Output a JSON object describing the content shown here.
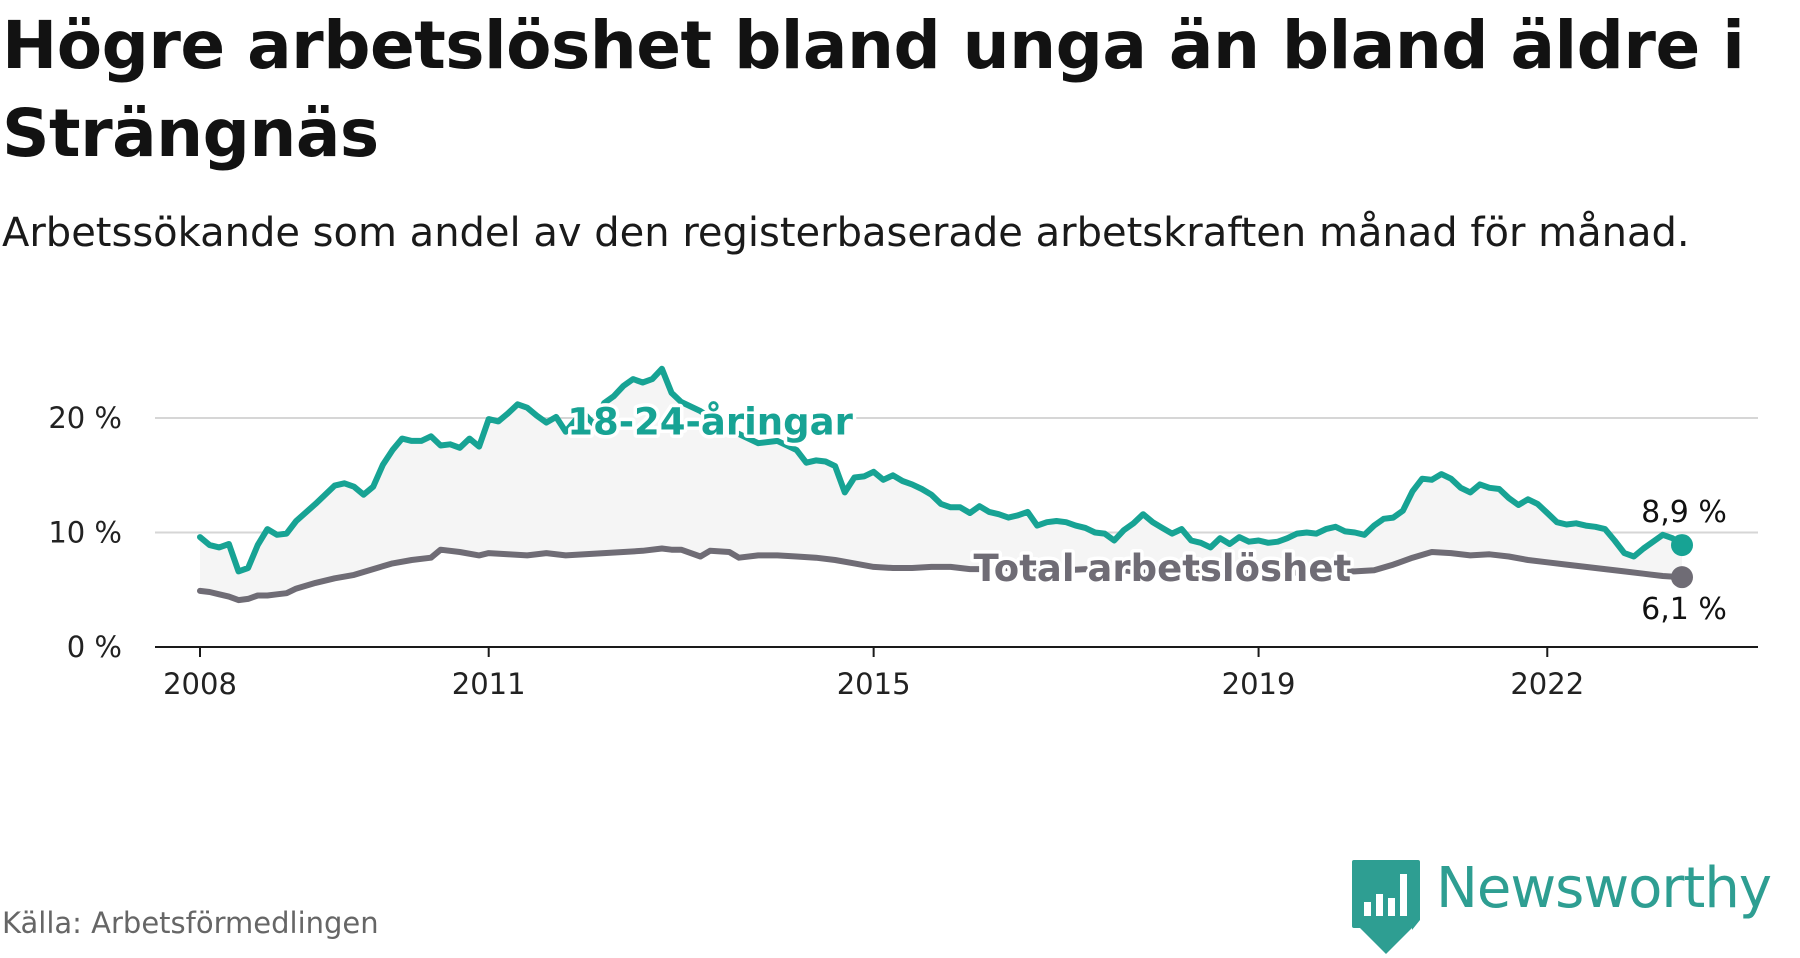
{
  "title": "Högre arbetslöshet bland unga än bland äldre i Strängnäs",
  "subtitle": "Arbetssökande som andel av den registerbaserade arbetskraften månad för månad.",
  "source": "Källa: Arbetsförmedlingen",
  "brand": {
    "name": "Newsworthy",
    "color": "#2e9e92"
  },
  "chart_data": {
    "type": "line",
    "title": "Högre arbetslöshet bland unga än bland äldre i Strängnäs",
    "xlabel": "",
    "ylabel": "",
    "xlim": [
      2007.9,
      2023.9
    ],
    "ylim": [
      0,
      25
    ],
    "y_ticks": [
      {
        "value": 0,
        "label": "0 %"
      },
      {
        "value": 10,
        "label": "10 %"
      },
      {
        "value": 20,
        "label": "20 %"
      }
    ],
    "x_ticks": [
      {
        "value": 2008,
        "label": "2008"
      },
      {
        "value": 2011,
        "label": "2011"
      },
      {
        "value": 2015,
        "label": "2015"
      },
      {
        "value": 2019,
        "label": "2019"
      },
      {
        "value": 2022,
        "label": "2022"
      }
    ],
    "grid": "horizontal",
    "series": [
      {
        "name": "18-24-åringar",
        "color": "#17a394",
        "end_label": "8,9 %",
        "points": [
          [
            2008.0,
            9.6
          ],
          [
            2008.1,
            8.9
          ],
          [
            2008.2,
            8.7
          ],
          [
            2008.3,
            9.0
          ],
          [
            2008.4,
            6.6
          ],
          [
            2008.5,
            6.9
          ],
          [
            2008.6,
            8.9
          ],
          [
            2008.7,
            10.3
          ],
          [
            2008.8,
            9.8
          ],
          [
            2008.9,
            9.9
          ],
          [
            2009.0,
            11.0
          ],
          [
            2009.2,
            12.5
          ],
          [
            2009.4,
            14.1
          ],
          [
            2009.5,
            14.3
          ],
          [
            2009.6,
            14.0
          ],
          [
            2009.7,
            13.3
          ],
          [
            2009.8,
            14.0
          ],
          [
            2009.9,
            15.9
          ],
          [
            2010.0,
            17.2
          ],
          [
            2010.1,
            18.2
          ],
          [
            2010.2,
            18.0
          ],
          [
            2010.3,
            18.0
          ],
          [
            2010.4,
            18.4
          ],
          [
            2010.5,
            17.6
          ],
          [
            2010.6,
            17.7
          ],
          [
            2010.7,
            17.4
          ],
          [
            2010.8,
            18.2
          ],
          [
            2010.9,
            17.5
          ],
          [
            2011.0,
            19.9
          ],
          [
            2011.1,
            19.7
          ],
          [
            2011.2,
            20.4
          ],
          [
            2011.3,
            21.2
          ],
          [
            2011.4,
            20.9
          ],
          [
            2011.5,
            20.2
          ],
          [
            2011.6,
            19.6
          ],
          [
            2011.7,
            20.1
          ],
          [
            2011.8,
            18.8
          ],
          [
            2011.9,
            19.8
          ],
          [
            2012.0,
            20.3
          ],
          [
            2012.1,
            19.4
          ],
          [
            2012.2,
            21.3
          ],
          [
            2012.3,
            21.9
          ],
          [
            2012.4,
            22.8
          ],
          [
            2012.5,
            23.4
          ],
          [
            2012.6,
            23.1
          ],
          [
            2012.7,
            23.4
          ],
          [
            2012.8,
            24.3
          ],
          [
            2012.9,
            22.2
          ],
          [
            2013.0,
            21.4
          ],
          [
            2013.2,
            20.6
          ],
          [
            2013.4,
            19.5
          ],
          [
            2013.6,
            18.6
          ],
          [
            2013.8,
            17.8
          ],
          [
            2014.0,
            18.0
          ],
          [
            2014.2,
            17.2
          ],
          [
            2014.3,
            16.1
          ],
          [
            2014.4,
            16.3
          ],
          [
            2014.5,
            16.2
          ],
          [
            2014.6,
            15.8
          ],
          [
            2014.7,
            13.5
          ],
          [
            2014.8,
            14.8
          ],
          [
            2014.9,
            14.9
          ],
          [
            2015.0,
            15.3
          ],
          [
            2015.1,
            14.6
          ],
          [
            2015.2,
            15.0
          ],
          [
            2015.3,
            14.5
          ],
          [
            2015.4,
            14.2
          ],
          [
            2015.5,
            13.8
          ],
          [
            2015.6,
            13.3
          ],
          [
            2015.7,
            12.5
          ],
          [
            2015.8,
            12.2
          ],
          [
            2015.9,
            12.2
          ],
          [
            2016.0,
            11.7
          ],
          [
            2016.1,
            12.3
          ],
          [
            2016.2,
            11.8
          ],
          [
            2016.3,
            11.6
          ],
          [
            2016.4,
            11.3
          ],
          [
            2016.5,
            11.5
          ],
          [
            2016.6,
            11.8
          ],
          [
            2016.7,
            10.6
          ],
          [
            2016.8,
            10.9
          ],
          [
            2016.9,
            11.0
          ],
          [
            2017.0,
            10.9
          ],
          [
            2017.1,
            10.6
          ],
          [
            2017.2,
            10.4
          ],
          [
            2017.3,
            10.0
          ],
          [
            2017.4,
            9.9
          ],
          [
            2017.5,
            9.3
          ],
          [
            2017.6,
            10.2
          ],
          [
            2017.7,
            10.8
          ],
          [
            2017.8,
            11.6
          ],
          [
            2017.9,
            10.9
          ],
          [
            2018.0,
            10.4
          ],
          [
            2018.1,
            9.9
          ],
          [
            2018.2,
            10.3
          ],
          [
            2018.3,
            9.3
          ],
          [
            2018.4,
            9.1
          ],
          [
            2018.5,
            8.7
          ],
          [
            2018.6,
            9.5
          ],
          [
            2018.7,
            9.0
          ],
          [
            2018.8,
            9.6
          ],
          [
            2018.9,
            9.2
          ],
          [
            2019.0,
            9.3
          ],
          [
            2019.1,
            9.1
          ],
          [
            2019.2,
            9.2
          ],
          [
            2019.3,
            9.5
          ],
          [
            2019.4,
            9.9
          ],
          [
            2019.5,
            10.0
          ],
          [
            2019.6,
            9.9
          ],
          [
            2019.7,
            10.3
          ],
          [
            2019.8,
            10.5
          ],
          [
            2019.9,
            10.1
          ],
          [
            2020.0,
            10.0
          ],
          [
            2020.1,
            9.8
          ],
          [
            2020.2,
            10.6
          ],
          [
            2020.3,
            11.2
          ],
          [
            2020.4,
            11.3
          ],
          [
            2020.5,
            11.9
          ],
          [
            2020.6,
            13.6
          ],
          [
            2020.7,
            14.7
          ],
          [
            2020.8,
            14.6
          ],
          [
            2020.9,
            15.1
          ],
          [
            2021.0,
            14.7
          ],
          [
            2021.1,
            13.9
          ],
          [
            2021.2,
            13.5
          ],
          [
            2021.3,
            14.2
          ],
          [
            2021.4,
            13.9
          ],
          [
            2021.5,
            13.8
          ],
          [
            2021.6,
            13.0
          ],
          [
            2021.7,
            12.4
          ],
          [
            2021.8,
            12.9
          ],
          [
            2021.9,
            12.5
          ],
          [
            2022.0,
            11.7
          ],
          [
            2022.1,
            10.9
          ],
          [
            2022.2,
            10.7
          ],
          [
            2022.3,
            10.8
          ],
          [
            2022.4,
            10.6
          ],
          [
            2022.5,
            10.5
          ],
          [
            2022.6,
            10.3
          ],
          [
            2022.7,
            9.3
          ],
          [
            2022.8,
            8.2
          ],
          [
            2022.9,
            7.9
          ],
          [
            2023.0,
            8.6
          ],
          [
            2023.1,
            9.2
          ],
          [
            2023.2,
            9.8
          ],
          [
            2023.3,
            9.5
          ],
          [
            2023.4,
            8.9
          ]
        ]
      },
      {
        "name": "Total arbetslöshet",
        "color": "#6f6c75",
        "end_label": "6,1 %",
        "points": [
          [
            2008.0,
            4.9
          ],
          [
            2008.1,
            4.8
          ],
          [
            2008.2,
            4.6
          ],
          [
            2008.3,
            4.4
          ],
          [
            2008.4,
            4.1
          ],
          [
            2008.5,
            4.2
          ],
          [
            2008.6,
            4.5
          ],
          [
            2008.7,
            4.5
          ],
          [
            2008.8,
            4.6
          ],
          [
            2008.9,
            4.7
          ],
          [
            2009.0,
            5.1
          ],
          [
            2009.2,
            5.6
          ],
          [
            2009.4,
            6.0
          ],
          [
            2009.6,
            6.3
          ],
          [
            2009.8,
            6.8
          ],
          [
            2010.0,
            7.3
          ],
          [
            2010.2,
            7.6
          ],
          [
            2010.4,
            7.8
          ],
          [
            2010.5,
            8.5
          ],
          [
            2010.7,
            8.3
          ],
          [
            2010.9,
            8.0
          ],
          [
            2011.0,
            8.2
          ],
          [
            2011.2,
            8.1
          ],
          [
            2011.4,
            8.0
          ],
          [
            2011.6,
            8.2
          ],
          [
            2011.8,
            8.0
          ],
          [
            2012.0,
            8.1
          ],
          [
            2012.2,
            8.2
          ],
          [
            2012.4,
            8.3
          ],
          [
            2012.6,
            8.4
          ],
          [
            2012.8,
            8.6
          ],
          [
            2012.9,
            8.5
          ],
          [
            2013.0,
            8.5
          ],
          [
            2013.2,
            7.9
          ],
          [
            2013.3,
            8.4
          ],
          [
            2013.5,
            8.3
          ],
          [
            2013.6,
            7.8
          ],
          [
            2013.8,
            8.0
          ],
          [
            2014.0,
            8.0
          ],
          [
            2014.2,
            7.9
          ],
          [
            2014.4,
            7.8
          ],
          [
            2014.6,
            7.6
          ],
          [
            2014.8,
            7.3
          ],
          [
            2015.0,
            7.0
          ],
          [
            2015.2,
            6.9
          ],
          [
            2015.4,
            6.9
          ],
          [
            2015.6,
            7.0
          ],
          [
            2015.8,
            7.0
          ],
          [
            2016.0,
            6.8
          ],
          [
            2016.2,
            6.8
          ],
          [
            2016.4,
            6.9
          ],
          [
            2016.6,
            6.9
          ],
          [
            2016.8,
            6.8
          ],
          [
            2017.0,
            6.7
          ],
          [
            2017.2,
            6.8
          ],
          [
            2017.4,
            6.6
          ],
          [
            2017.6,
            6.7
          ],
          [
            2017.8,
            6.5
          ],
          [
            2018.0,
            6.6
          ],
          [
            2018.2,
            6.4
          ],
          [
            2018.4,
            6.5
          ],
          [
            2018.6,
            6.4
          ],
          [
            2018.8,
            6.5
          ],
          [
            2019.0,
            6.4
          ],
          [
            2019.2,
            6.5
          ],
          [
            2019.4,
            6.5
          ],
          [
            2019.6,
            6.6
          ],
          [
            2019.8,
            6.6
          ],
          [
            2020.0,
            6.6
          ],
          [
            2020.2,
            6.7
          ],
          [
            2020.4,
            7.2
          ],
          [
            2020.6,
            7.8
          ],
          [
            2020.8,
            8.3
          ],
          [
            2021.0,
            8.2
          ],
          [
            2021.2,
            8.0
          ],
          [
            2021.4,
            8.1
          ],
          [
            2021.6,
            7.9
          ],
          [
            2021.8,
            7.6
          ],
          [
            2022.0,
            7.4
          ],
          [
            2022.2,
            7.2
          ],
          [
            2022.4,
            7.0
          ],
          [
            2022.6,
            6.8
          ],
          [
            2022.8,
            6.6
          ],
          [
            2023.0,
            6.4
          ],
          [
            2023.2,
            6.2
          ],
          [
            2023.4,
            6.1
          ]
        ]
      }
    ],
    "annotations": [
      {
        "text": "18-24-åringar",
        "series": "18-24-åringar",
        "x": 2013.3,
        "y": 19.7
      },
      {
        "text": "Total arbetslöshet",
        "series": "Total arbetslöshet",
        "x": 2018.0,
        "y": 6.9
      }
    ]
  }
}
